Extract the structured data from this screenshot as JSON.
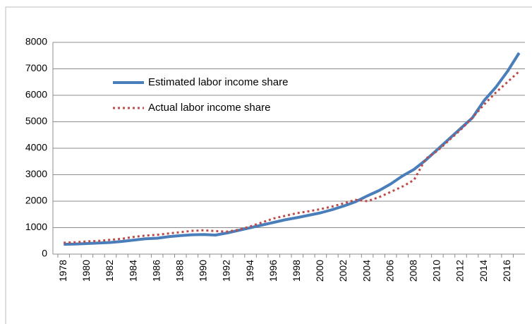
{
  "chart_data": {
    "type": "line",
    "categories": [
      "1978",
      null,
      "1980",
      null,
      "1982",
      null,
      "1984",
      null,
      "1986",
      null,
      "1988",
      null,
      "1990",
      null,
      "1992",
      null,
      "1994",
      null,
      "1996",
      null,
      "1998",
      null,
      "2000",
      null,
      "2002",
      null,
      "2004",
      null,
      "2006",
      null,
      "2008",
      null,
      "2010",
      null,
      "2012",
      null,
      "2014",
      null,
      "2016",
      null
    ],
    "series": [
      {
        "name": "Estimated labor income share",
        "color": "#4a7ebb",
        "style": "solid",
        "values": [
          370,
          380,
          400,
          420,
          440,
          480,
          530,
          580,
          600,
          660,
          700,
          730,
          740,
          720,
          800,
          900,
          1000,
          1100,
          1200,
          1300,
          1380,
          1470,
          1560,
          1680,
          1820,
          1980,
          2200,
          2400,
          2650,
          2950,
          3200,
          3550,
          3950,
          4350,
          4750,
          5150,
          5800,
          6300,
          6900,
          7600
        ]
      },
      {
        "name": "Actual labor income share",
        "color": "#be4b48",
        "style": "dotted",
        "values": [
          430,
          450,
          480,
          500,
          540,
          580,
          650,
          700,
          730,
          780,
          830,
          880,
          900,
          870,
          850,
          920,
          1050,
          1200,
          1350,
          1450,
          1550,
          1620,
          1700,
          1800,
          1920,
          2050,
          2000,
          2150,
          2350,
          2550,
          2800,
          3600,
          3900,
          4300,
          4700,
          5150,
          5650,
          6100,
          6500,
          6900
        ]
      }
    ],
    "ylim": [
      0,
      8000
    ],
    "yticks": [
      0,
      1000,
      2000,
      3000,
      4000,
      5000,
      6000,
      7000,
      8000
    ],
    "grid": true,
    "legend": "upper left"
  }
}
